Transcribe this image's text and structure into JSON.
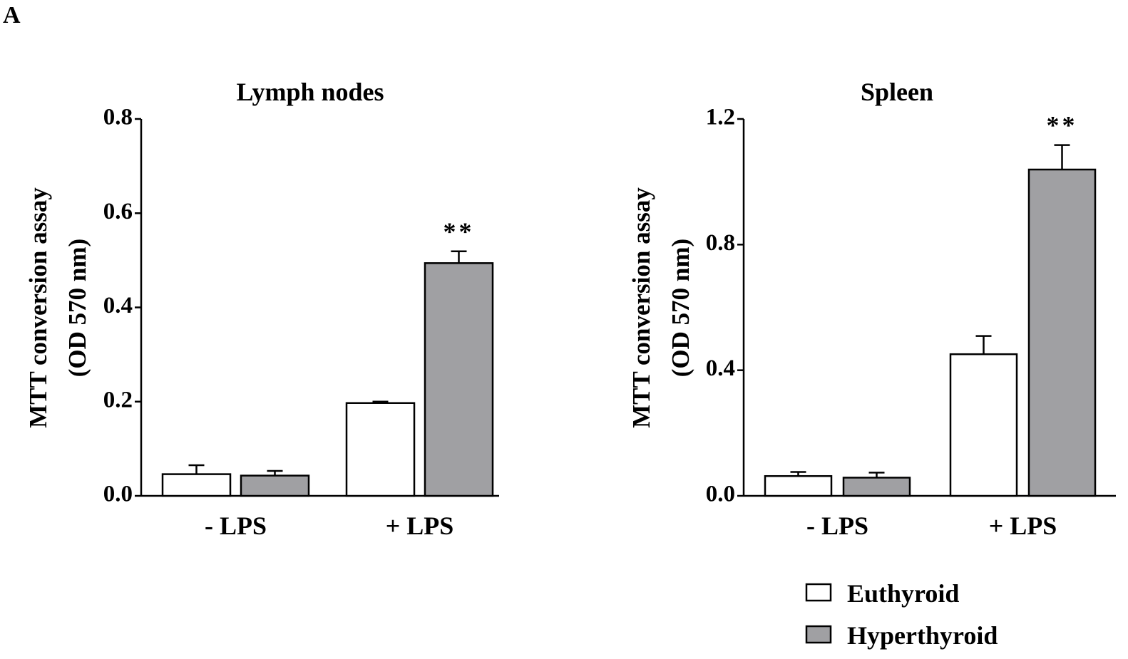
{
  "panel_letter": "A",
  "legend": {
    "items": [
      {
        "label": "Euthyroid",
        "color": "#ffffff"
      },
      {
        "label": "Hyperthyroid",
        "color": "#a0a0a3"
      }
    ]
  },
  "chart_data": [
    {
      "type": "bar",
      "title": "Lymph nodes",
      "ylabel_lines": [
        "MTT conversion assay",
        "(OD 570 nm)"
      ],
      "categories": [
        "- LPS",
        "+ LPS"
      ],
      "ylim": [
        0,
        0.8
      ],
      "yticks": [
        "0.0",
        "0.2",
        "0.4",
        "0.6",
        "0.8"
      ],
      "series": [
        {
          "name": "Euthyroid",
          "values": [
            0.046,
            0.197
          ],
          "errors": [
            0.019,
            0.003
          ],
          "color": "#ffffff"
        },
        {
          "name": "Hyperthyroid",
          "values": [
            0.043,
            0.494
          ],
          "errors": [
            0.01,
            0.025
          ],
          "color": "#a0a0a3"
        }
      ],
      "annotations": [
        {
          "series": 1,
          "category": 1,
          "text": "**"
        }
      ],
      "grid": false
    },
    {
      "type": "bar",
      "title": "Spleen",
      "ylabel_lines": [
        "MTT conversion assay",
        "(OD 570 nm)"
      ],
      "categories": [
        "- LPS",
        "+ LPS"
      ],
      "ylim": [
        0,
        1.2
      ],
      "yticks": [
        "0.0",
        "0.4",
        "0.8",
        "1.2"
      ],
      "series": [
        {
          "name": "Euthyroid",
          "values": [
            0.063,
            0.451
          ],
          "errors": [
            0.013,
            0.058
          ],
          "color": "#ffffff"
        },
        {
          "name": "Hyperthyroid",
          "values": [
            0.058,
            1.039
          ],
          "errors": [
            0.016,
            0.078
          ],
          "color": "#a0a0a3"
        }
      ],
      "annotations": [
        {
          "series": 1,
          "category": 1,
          "text": "**"
        }
      ],
      "grid": false
    }
  ]
}
